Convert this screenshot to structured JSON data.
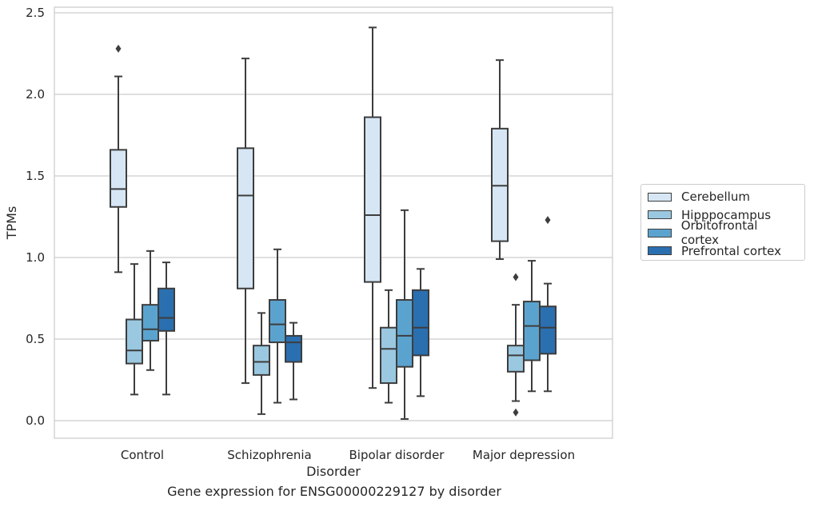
{
  "caption": "Gene expression for ENSG00000229127 by disorder",
  "chart_data": {
    "type": "boxplot",
    "title": "",
    "xlabel": "Disorder",
    "ylabel": "TPMs",
    "ylim": [
      -0.1,
      2.55
    ],
    "yticks": [
      "0.0",
      "0.5",
      "1.0",
      "1.5",
      "2.0",
      "2.5"
    ],
    "grid": true,
    "legend_position": "right",
    "categories": [
      "Control",
      "Schizophrenia",
      "Bipolar disorder",
      "Major depression"
    ],
    "series": [
      {
        "name": "Cerebellum",
        "color": "#d6e6f4",
        "boxes": [
          {
            "whisker_low": 0.91,
            "q1": 1.31,
            "median": 1.42,
            "q3": 1.66,
            "whisker_high": 2.11,
            "outliers": [
              2.28
            ]
          },
          {
            "whisker_low": 0.23,
            "q1": 0.81,
            "median": 1.38,
            "q3": 1.67,
            "whisker_high": 2.22,
            "outliers": []
          },
          {
            "whisker_low": 0.2,
            "q1": 0.85,
            "median": 1.26,
            "q3": 1.86,
            "whisker_high": 2.41,
            "outliers": []
          },
          {
            "whisker_low": 0.99,
            "q1": 1.1,
            "median": 1.44,
            "q3": 1.79,
            "whisker_high": 2.21,
            "outliers": []
          }
        ]
      },
      {
        "name": "Hipppocampus",
        "color": "#9ac8e0",
        "boxes": [
          {
            "whisker_low": 0.16,
            "q1": 0.35,
            "median": 0.43,
            "q3": 0.62,
            "whisker_high": 0.96,
            "outliers": []
          },
          {
            "whisker_low": 0.04,
            "q1": 0.28,
            "median": 0.36,
            "q3": 0.46,
            "whisker_high": 0.66,
            "outliers": []
          },
          {
            "whisker_low": 0.11,
            "q1": 0.23,
            "median": 0.44,
            "q3": 0.57,
            "whisker_high": 0.8,
            "outliers": []
          },
          {
            "whisker_low": 0.12,
            "q1": 0.3,
            "median": 0.4,
            "q3": 0.46,
            "whisker_high": 0.71,
            "outliers": [
              0.88,
              0.05
            ]
          }
        ]
      },
      {
        "name": "Orbitofrontal cortex",
        "color": "#5ba3cf",
        "boxes": [
          {
            "whisker_low": 0.31,
            "q1": 0.49,
            "median": 0.56,
            "q3": 0.71,
            "whisker_high": 1.04,
            "outliers": []
          },
          {
            "whisker_low": 0.11,
            "q1": 0.48,
            "median": 0.59,
            "q3": 0.74,
            "whisker_high": 1.05,
            "outliers": []
          },
          {
            "whisker_low": 0.01,
            "q1": 0.33,
            "median": 0.52,
            "q3": 0.74,
            "whisker_high": 1.29,
            "outliers": []
          },
          {
            "whisker_low": 0.18,
            "q1": 0.37,
            "median": 0.58,
            "q3": 0.73,
            "whisker_high": 0.98,
            "outliers": []
          }
        ]
      },
      {
        "name": "Prefrontal cortex",
        "color": "#2a6fb0",
        "boxes": [
          {
            "whisker_low": 0.16,
            "q1": 0.55,
            "median": 0.63,
            "q3": 0.81,
            "whisker_high": 0.97,
            "outliers": []
          },
          {
            "whisker_low": 0.13,
            "q1": 0.36,
            "median": 0.48,
            "q3": 0.52,
            "whisker_high": 0.6,
            "outliers": []
          },
          {
            "whisker_low": 0.15,
            "q1": 0.4,
            "median": 0.57,
            "q3": 0.8,
            "whisker_high": 0.93,
            "outliers": []
          },
          {
            "whisker_low": 0.18,
            "q1": 0.41,
            "median": 0.57,
            "q3": 0.7,
            "whisker_high": 0.84,
            "outliers": [
              1.23
            ]
          }
        ]
      }
    ]
  }
}
